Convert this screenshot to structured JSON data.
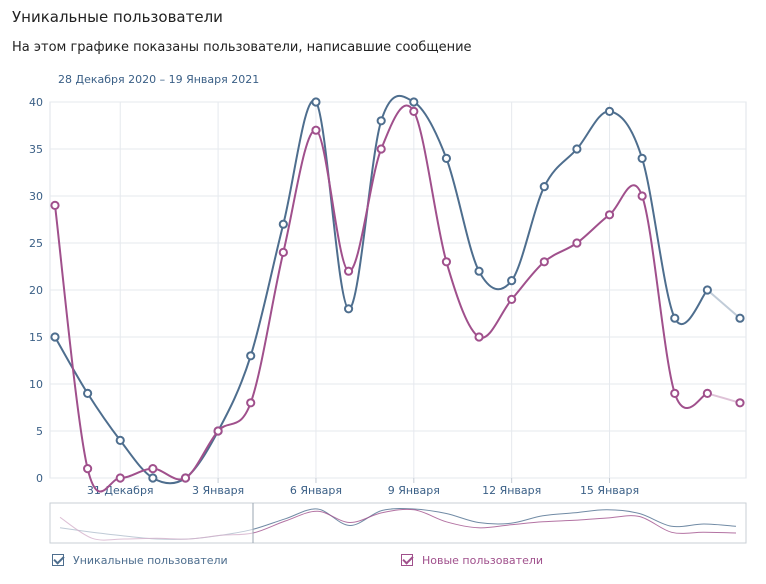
{
  "header": {
    "title": "Уникальные пользователи",
    "subtitle": "На этом графике показаны пользователи, написавшие сообщение",
    "date_range": "28 Декабря 2020 – 19 Января 2021"
  },
  "colors": {
    "series1": "#4e6e8e",
    "series2": "#a0508c",
    "grid": "#e6e9ee",
    "axis_text": "#3a5f86"
  },
  "chart_data": {
    "type": "line",
    "x": [
      "29.12",
      "30.12",
      "31.12",
      "01.01",
      "02.01",
      "03.01",
      "04.01",
      "05.01",
      "06.01",
      "07.01",
      "08.01",
      "09.01",
      "10.01",
      "11.01",
      "12.01",
      "13.01",
      "14.01",
      "15.01",
      "16.01",
      "17.01",
      "18.01",
      "19.01"
    ],
    "x_tick_labels": [
      "31 Декабря",
      "3 Января",
      "6 Января",
      "9 Января",
      "12 Января",
      "15 Января"
    ],
    "y_tick_labels": [
      "0",
      "5",
      "10",
      "15",
      "20",
      "25",
      "30",
      "35",
      "40"
    ],
    "ylim": [
      0,
      40
    ],
    "grid": true,
    "legend_position": "bottom",
    "series": [
      {
        "name": "Уникальные пользователи",
        "values": [
          15,
          9,
          4,
          0,
          0,
          5,
          13,
          27,
          40,
          18,
          38,
          40,
          34,
          22,
          21,
          31,
          35,
          39,
          34,
          17,
          20,
          17
        ]
      },
      {
        "name": "Новые пользователи",
        "values": [
          29,
          1,
          0,
          1,
          0,
          5,
          8,
          24,
          37,
          22,
          35,
          39,
          23,
          15,
          19,
          23,
          25,
          28,
          30,
          9,
          9,
          8
        ]
      }
    ]
  },
  "legend": {
    "items": [
      {
        "label": "Уникальные пользователи",
        "checked": true
      },
      {
        "label": "Новые пользователи",
        "checked": true
      }
    ]
  }
}
